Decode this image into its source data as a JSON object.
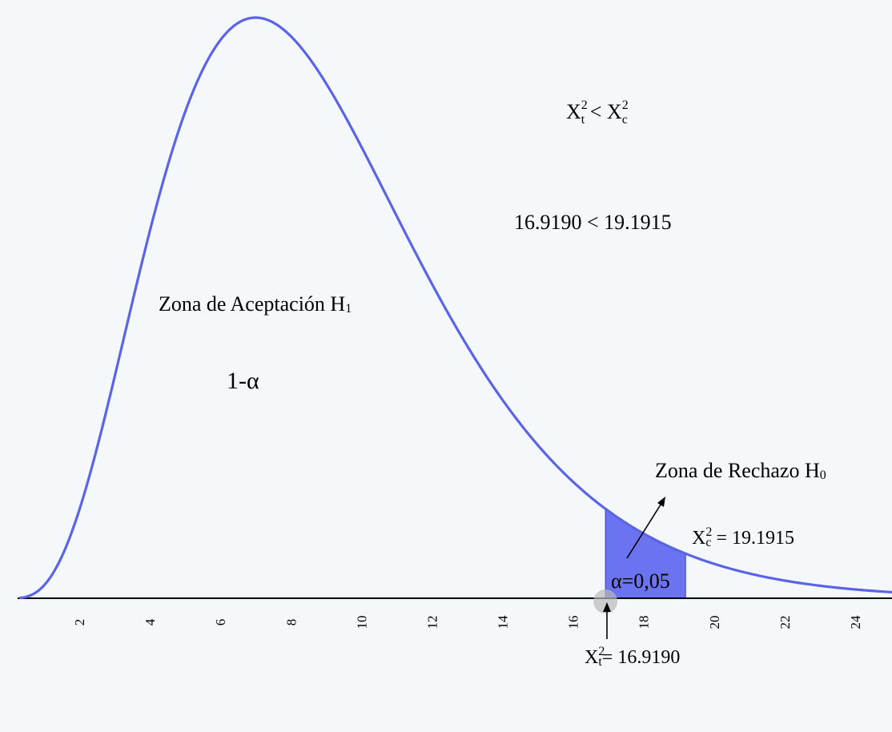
{
  "chart_data": {
    "type": "area",
    "distribution": "chi-square",
    "degrees_of_freedom": 9,
    "x_ticks": [
      2,
      4,
      6,
      8,
      10,
      12,
      14,
      16,
      18,
      20,
      22,
      24
    ],
    "xlim": [
      0.3,
      25.2
    ],
    "critical_value_tabulated": 16.919,
    "calculated_value": 19.1915,
    "shaded_region": [
      16.919,
      19.1915
    ],
    "curve_color": "#5b64e6",
    "shade_color": "#6b73f0",
    "axis_color": "#000000",
    "background": "#f4f8fb"
  },
  "annotations": {
    "comparison_x1": "X",
    "comparison_x1_sup": "2",
    "comparison_x1_sub": "t",
    "comparison_op": " < ",
    "comparison_x2": "X",
    "comparison_x2_sup": "2",
    "comparison_x2_sub": "c",
    "comparison_values": "16.9190 < 19.1915",
    "acceptance_label": "Zona de Aceptación H",
    "acceptance_sub": "1",
    "one_minus_alpha": "1-α",
    "rejection_label": "Zona de Rechazo H",
    "rejection_sub": "0",
    "xc_label_x": "X",
    "xc_label_sup": "2",
    "xc_label_sub": "c",
    "xc_label_value": " = 19.1915",
    "alpha_label": "α=0,05",
    "xt_label_x": "X",
    "xt_label_sup": "2",
    "xt_label_sub": "t",
    "xt_label_value": "= 16.9190"
  }
}
